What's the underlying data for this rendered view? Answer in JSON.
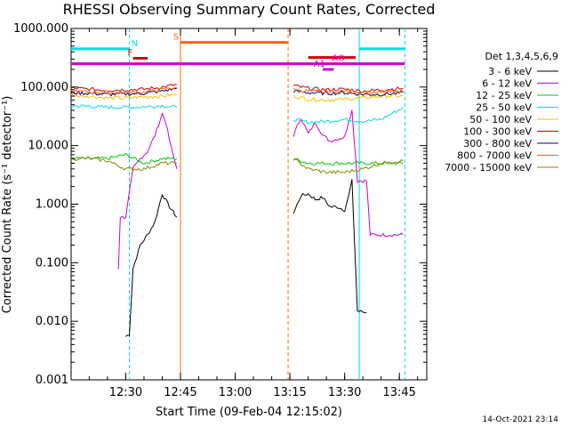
{
  "chart_data": {
    "type": "line",
    "title": "RHESSI Observing Summary Count Rates, Corrected",
    "xlabel": "Start Time (09-Feb-04 12:15:02)",
    "ylabel": "Corrected Count Rate (s⁻¹ detector⁻¹)",
    "x_ticks": [
      "12:30",
      "12:45",
      "13:00",
      "13:15",
      "13:30",
      "13:45"
    ],
    "y_ticks": [
      "1000.000",
      "100.000",
      "10.000",
      "1.000",
      "0.100",
      "0.010",
      "0.001"
    ],
    "ylim": [
      0.001,
      1000
    ],
    "y_scale": "log",
    "xlim": [
      "12:15:02",
      "13:52:30"
    ],
    "legend_title": "Det 1,3,4,5,6,9",
    "legend_placement": "right",
    "series": [
      {
        "name": "3 - 6 keV",
        "color": "#000000",
        "segments": [
          [
            [
              "12:30:00",
              0.0055
            ],
            [
              "12:31:00",
              0.006
            ],
            [
              "12:32:00",
              0.08
            ],
            [
              "12:34:00",
              0.2
            ],
            [
              "12:36:00",
              0.3
            ],
            [
              "12:38:00",
              0.5
            ],
            [
              "12:40:00",
              1.5
            ],
            [
              "12:42:00",
              0.9
            ],
            [
              "12:44:00",
              0.6
            ]
          ],
          [
            [
              "13:16:00",
              0.7
            ],
            [
              "13:18:00",
              1.4
            ],
            [
              "13:20:00",
              1.5
            ],
            [
              "13:22:00",
              1.2
            ],
            [
              "13:24:00",
              1.3
            ],
            [
              "13:26:00",
              0.9
            ],
            [
              "13:28:00",
              0.9
            ],
            [
              "13:30:00",
              0.8
            ],
            [
              "13:31:00",
              1.3
            ],
            [
              "13:32:00",
              2.5
            ],
            [
              "13:33:30",
              0.015
            ],
            [
              "13:36:00",
              0.014
            ]
          ]
        ]
      },
      {
        "name": "6 - 12 keV",
        "color": "#cc00cc",
        "segments": [
          [
            [
              "12:28:00",
              0.08
            ],
            [
              "12:28:30",
              0.6
            ],
            [
              "12:30:00",
              0.6
            ],
            [
              "12:32:00",
              4
            ],
            [
              "12:34:00",
              6
            ],
            [
              "12:36:00",
              8
            ],
            [
              "12:38:00",
              15
            ],
            [
              "12:40:00",
              35
            ],
            [
              "12:41:00",
              25
            ],
            [
              "12:42:00",
              12
            ],
            [
              "12:44:00",
              4
            ]
          ],
          [
            [
              "13:16:00",
              15
            ],
            [
              "13:18:00",
              30
            ],
            [
              "13:20:00",
              16
            ],
            [
              "13:22:00",
              25
            ],
            [
              "13:24:00",
              15
            ],
            [
              "13:26:00",
              12
            ],
            [
              "13:28:00",
              13
            ],
            [
              "13:30:00",
              14
            ],
            [
              "13:31:00",
              25
            ],
            [
              "13:32:00",
              40
            ],
            [
              "13:33:30",
              2.5
            ],
            [
              "13:36:00",
              2.5
            ],
            [
              "13:37:00",
              0.3
            ],
            [
              "13:46:00",
              0.3
            ]
          ]
        ]
      },
      {
        "name": "12 - 25 keV",
        "color": "#00cc00",
        "segments": [
          [
            [
              "12:15:02",
              6
            ],
            [
              "12:20:00",
              6
            ],
            [
              "12:25:00",
              6
            ],
            [
              "12:30:00",
              7
            ],
            [
              "12:35:00",
              5
            ],
            [
              "12:40:00",
              6
            ],
            [
              "12:44:00",
              6
            ]
          ],
          [
            [
              "13:16:00",
              6
            ],
            [
              "13:20:00",
              5
            ],
            [
              "13:25:00",
              5
            ],
            [
              "13:30:00",
              5
            ],
            [
              "13:35:00",
              5
            ],
            [
              "13:40:00",
              5
            ],
            [
              "13:46:00",
              5
            ]
          ]
        ]
      },
      {
        "name": "25 - 50 keV",
        "color": "#00dddd",
        "segments": [
          [
            [
              "12:15:02",
              48
            ],
            [
              "12:20:00",
              47
            ],
            [
              "12:25:00",
              45
            ],
            [
              "12:30:00",
              45
            ],
            [
              "12:35:00",
              46
            ],
            [
              "12:40:00",
              48
            ],
            [
              "12:44:00",
              45
            ]
          ],
          [
            [
              "13:16:00",
              28
            ],
            [
              "13:20:00",
              25
            ],
            [
              "13:25:00",
              26
            ],
            [
              "13:30:00",
              28
            ],
            [
              "13:35:00",
              26
            ],
            [
              "13:40:00",
              28
            ],
            [
              "13:46:00",
              45
            ]
          ]
        ]
      },
      {
        "name": "50 - 100 keV",
        "color": "#ffbb00",
        "segments": [
          [
            [
              "12:15:02",
              72
            ],
            [
              "12:20:00",
              70
            ],
            [
              "12:25:00",
              65
            ],
            [
              "12:30:00",
              65
            ],
            [
              "12:35:00",
              68
            ],
            [
              "12:40:00",
              70
            ],
            [
              "12:44:00",
              75
            ]
          ],
          [
            [
              "13:16:00",
              70
            ],
            [
              "13:20:00",
              62
            ],
            [
              "13:25:00",
              60
            ],
            [
              "13:30:00",
              62
            ],
            [
              "13:35:00",
              65
            ],
            [
              "13:40:00",
              70
            ],
            [
              "13:46:00",
              70
            ]
          ]
        ]
      },
      {
        "name": "100 - 300 keV",
        "color": "#cc0000",
        "segments": [
          [
            [
              "12:15:02",
              95
            ],
            [
              "12:20:00",
              92
            ],
            [
              "12:25:00",
              88
            ],
            [
              "12:30:00",
              90
            ],
            [
              "12:35:00",
              92
            ],
            [
              "12:40:00",
              100
            ],
            [
              "12:44:00",
              110
            ]
          ],
          [
            [
              "13:16:00",
              105
            ],
            [
              "13:20:00",
              95
            ],
            [
              "13:25:00",
              90
            ],
            [
              "13:30:00",
              92
            ],
            [
              "13:35:00",
              85
            ],
            [
              "13:40:00",
              90
            ],
            [
              "13:46:00",
              95
            ]
          ]
        ]
      },
      {
        "name": "300 - 800 keV",
        "color": "#000088",
        "segments": [
          [
            [
              "12:15:02",
              80
            ],
            [
              "12:20:00",
              78
            ],
            [
              "12:25:00",
              75
            ],
            [
              "12:30:00",
              76
            ],
            [
              "12:35:00",
              78
            ],
            [
              "12:40:00",
              85
            ],
            [
              "12:44:00",
              95
            ]
          ],
          [
            [
              "13:16:00",
              85
            ],
            [
              "13:20:00",
              80
            ],
            [
              "13:25:00",
              78
            ],
            [
              "13:30:00",
              80
            ],
            [
              "13:35:00",
              75
            ],
            [
              "13:40:00",
              75
            ],
            [
              "13:46:00",
              80
            ]
          ]
        ]
      },
      {
        "name": "800 - 7000 keV",
        "color": "#ff6600",
        "segments": [
          [
            [
              "12:15:02",
              85
            ],
            [
              "12:20:00",
              82
            ],
            [
              "12:25:00",
              80
            ],
            [
              "12:30:00",
              80
            ],
            [
              "12:35:00",
              82
            ],
            [
              "12:40:00",
              90
            ],
            [
              "12:44:00",
              100
            ]
          ],
          [
            [
              "13:16:00",
              90
            ],
            [
              "13:20:00",
              85
            ],
            [
              "13:25:00",
              82
            ],
            [
              "13:30:00",
              85
            ],
            [
              "13:35:00",
              80
            ],
            [
              "13:40:00",
              80
            ],
            [
              "13:46:00",
              85
            ]
          ]
        ]
      },
      {
        "name": "7000 - 15000 keV",
        "color": "#888800",
        "segments": [
          [
            [
              "12:15:02",
              6
            ],
            [
              "12:20:00",
              6
            ],
            [
              "12:25:00",
              5.5
            ],
            [
              "12:30:00",
              4
            ],
            [
              "12:35:00",
              4
            ],
            [
              "12:40:00",
              5
            ],
            [
              "12:44:00",
              5
            ]
          ],
          [
            [
              "13:16:00",
              6
            ],
            [
              "13:20:00",
              4
            ],
            [
              "13:25:00",
              3.5
            ],
            [
              "13:30:00",
              3.5
            ],
            [
              "13:35:00",
              4
            ],
            [
              "13:40:00",
              5
            ],
            [
              "13:46:00",
              5.5
            ]
          ]
        ]
      }
    ],
    "flag_bars": [
      {
        "label": "N",
        "color": "#00dddd",
        "y": 450,
        "ranges": [
          [
            "12:15:02",
            "12:31:00"
          ],
          [
            "13:34:00",
            "13:46:30"
          ]
        ],
        "label_at": "12:31:30"
      },
      {
        "label": "S",
        "color": "#ff6600",
        "y": 580,
        "ranges": [
          [
            "12:45:00",
            "13:14:30"
          ]
        ],
        "label_at": "12:43:00"
      },
      {
        "label": "F",
        "color": "#cc0000",
        "y": 310,
        "ranges": [
          [
            "12:32:00",
            "12:36:00"
          ]
        ],
        "label_at": "12:30:30"
      },
      {
        "label": "",
        "color": "#cc0000",
        "y": 320,
        "ranges": [
          [
            "13:20:00",
            "13:33:00"
          ]
        ],
        "label_at": ""
      },
      {
        "label": "AO",
        "color": "#cc00cc",
        "y": 250,
        "ranges": [
          [
            "12:15:02",
            "13:46:30"
          ]
        ],
        "label_at": "13:26:30"
      },
      {
        "label": "A1",
        "color": "#cc00cc",
        "y": 200,
        "ranges": [
          [
            "13:24:00",
            "13:27:00"
          ]
        ],
        "label_at": "13:21:30"
      }
    ],
    "vertical_lines": [
      {
        "time": "12:31:00",
        "color": "#00dddd",
        "style": "dashed"
      },
      {
        "time": "12:45:00",
        "color": "#ff6600",
        "style": "solid"
      },
      {
        "time": "13:14:30",
        "color": "#ff6600",
        "style": "dashed"
      },
      {
        "time": "13:34:00",
        "color": "#00dddd",
        "style": "solid"
      },
      {
        "time": "13:46:30",
        "color": "#00dddd",
        "style": "dashed"
      }
    ],
    "timestamp": "14-Oct-2021 23:14"
  }
}
